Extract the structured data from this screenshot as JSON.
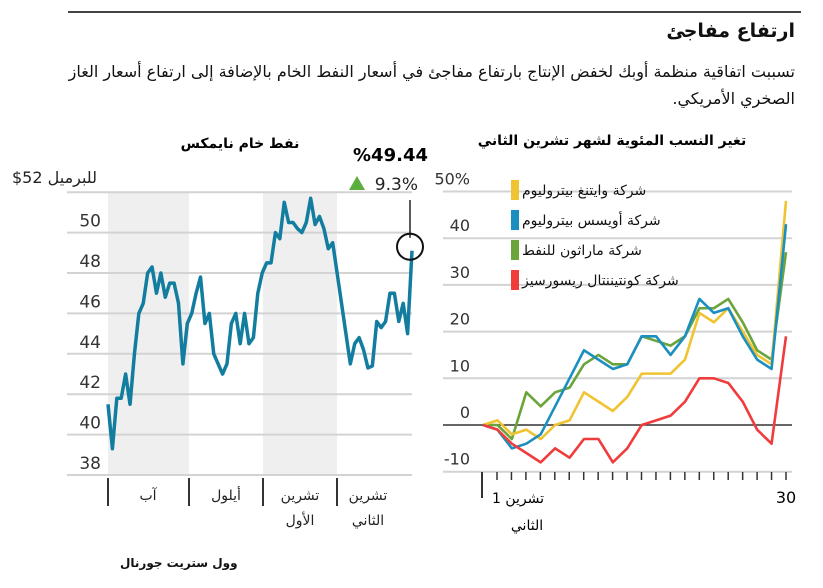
{
  "header": {
    "title": "ارتفاع مفاجئ",
    "subtitle": "تسببت اتفاقية منظمة أوبك لخفض الإنتاج بارتفاع مفاجئ في أسعار النفط الخام بالإضافة إلى ارتفاع أسعار الغاز الصخري الأمريكي."
  },
  "source": "وول ستريت جورنال",
  "colors": {
    "nymex": "#137da0",
    "whiting": "#f0c330",
    "oasis": "#1b8fc0",
    "marathon": "#6aa43a",
    "continental": "#f03c3c",
    "shade": "#efefef",
    "grid": "#d3d3d3",
    "up": "#5aae3c"
  },
  "chart_data": [
    {
      "type": "line",
      "title": "نفط خام نايمكس",
      "unit_label": "$52 للبرميل",
      "ylim": [
        38,
        52
      ],
      "yticks": [
        38,
        40,
        42,
        44,
        46,
        48,
        50
      ],
      "months": [
        "آب",
        "أيلول",
        "تشرين الأول",
        "تشرين الثاني"
      ],
      "shaded_months": [
        "آب",
        "تشرين الأول"
      ],
      "last_value": "%49.44",
      "change": "9.3%",
      "values": [
        41.5,
        39.3,
        41.8,
        41.8,
        43,
        41.5,
        44,
        46,
        46.5,
        48,
        48.3,
        47,
        48,
        46.8,
        47.5,
        47.5,
        46.5,
        43.5,
        45.5,
        46,
        47,
        47.8,
        45.5,
        46,
        44,
        43.5,
        43,
        43.5,
        45.5,
        46,
        44.5,
        46,
        44.5,
        44.8,
        47,
        48,
        48.5,
        48.5,
        50,
        49.7,
        51.5,
        50.5,
        50.5,
        50.2,
        50,
        50.5,
        51.7,
        50.4,
        50.8,
        50.2,
        49.2,
        49.5,
        48,
        46.5,
        45,
        43.5,
        44.5,
        44.8,
        44.2,
        43.3,
        43.4,
        45.6,
        45.3,
        45.6,
        47,
        47,
        45.6,
        46.5,
        45,
        49.1
      ]
    },
    {
      "type": "line",
      "title": "تغير النسب المئوية لشهر تشرين الثاني",
      "ylim": [
        -10,
        50
      ],
      "yticks": [
        "-10",
        "0",
        "10",
        "20",
        "30",
        "40",
        "50%"
      ],
      "xlabels": {
        "first": "1 تشرين الثاني",
        "last": "30"
      },
      "series": [
        {
          "name": "شركة وايتنغ بيتروليوم",
          "color": "#f0c330",
          "values": [
            0,
            1,
            -2,
            -1,
            -3,
            0,
            1,
            7,
            5,
            3,
            6,
            11,
            11,
            11,
            14,
            24,
            22,
            25,
            20,
            15,
            13,
            48
          ]
        },
        {
          "name": "شركة أويسس بيتروليوم",
          "color": "#1b8fc0",
          "values": [
            0,
            -1,
            -5,
            -4,
            -2,
            4,
            10,
            16,
            14,
            12,
            13,
            19,
            19,
            15,
            19,
            27,
            24,
            25,
            19,
            14,
            12,
            43
          ]
        },
        {
          "name": "شركة ماراثون للنفط",
          "color": "#6aa43a",
          "values": [
            0,
            0,
            -3,
            7,
            4,
            7,
            8,
            13,
            15,
            13,
            13,
            19,
            18,
            17,
            19,
            25,
            25,
            27,
            22,
            16,
            14,
            37
          ]
        },
        {
          "name": "شركة كونتيننتال ريسورسيز",
          "color": "#f03c3c",
          "values": [
            0,
            -1,
            -4,
            -6,
            -8,
            -5,
            -7,
            -3,
            -3,
            -8,
            -5,
            0,
            1,
            2,
            5,
            10,
            10,
            9,
            5,
            -1,
            -4,
            19
          ]
        }
      ]
    }
  ]
}
